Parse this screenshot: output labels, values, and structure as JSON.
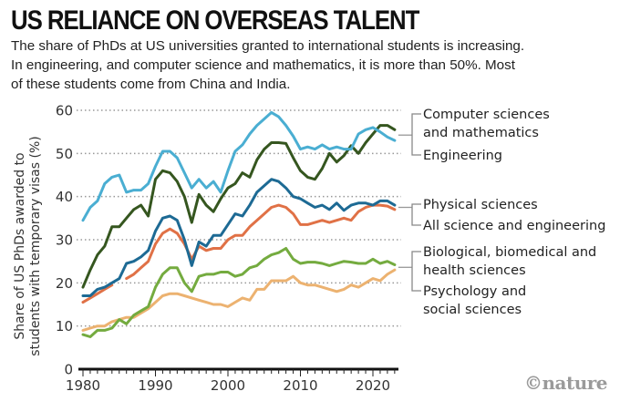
{
  "header": {
    "title": "US RELIANCE ON OVERSEAS TALENT",
    "subtitle_lines": [
      "The share of PhDs at US universities granted to international students is increasing.",
      "In engineering, and computer science and mathematics, it is more than 50%. Most",
      "of these students come from China and India."
    ]
  },
  "credit": "©nature",
  "chart_data": {
    "type": "line",
    "title": "US RELIANCE ON OVERSEAS TALENT",
    "xlabel": "",
    "ylabel_lines": [
      "Share of US PhDs awarded to",
      "students with temporary visas (%)"
    ],
    "xlim": [
      1980,
      2023
    ],
    "ylim": [
      0,
      60
    ],
    "x_ticks": [
      1980,
      1990,
      2000,
      2010,
      2020
    ],
    "y_ticks": [
      0,
      10,
      20,
      30,
      40,
      50,
      60
    ],
    "grid": "horizontal dotted",
    "legend_placement": "right, direct labels",
    "x": [
      1980,
      1981,
      1982,
      1983,
      1984,
      1985,
      1986,
      1987,
      1988,
      1989,
      1990,
      1991,
      1992,
      1993,
      1994,
      1995,
      1996,
      1997,
      1998,
      1999,
      2000,
      2001,
      2002,
      2003,
      2004,
      2005,
      2006,
      2007,
      2008,
      2009,
      2010,
      2011,
      2012,
      2013,
      2014,
      2015,
      2016,
      2017,
      2018,
      2019,
      2020,
      2021,
      2022,
      2023
    ],
    "series": [
      {
        "name": "Computer sciences and mathematics",
        "label_lines": [
          "Computer sciences",
          "and mathematics"
        ],
        "color": "#4aaed2",
        "values": [
          34.5,
          37.5,
          39,
          43,
          44.5,
          45,
          41,
          41.5,
          41.5,
          43,
          47,
          50.5,
          50.5,
          49,
          45.5,
          42,
          44,
          42,
          43.5,
          41,
          46,
          50.5,
          52,
          54.5,
          56.5,
          58,
          59.5,
          58.5,
          56.5,
          54,
          51,
          51.5,
          51,
          52,
          51,
          51.5,
          51,
          51,
          54.5,
          55.5,
          56,
          55,
          53.8,
          53
        ]
      },
      {
        "name": "Engineering",
        "label_lines": [
          "Engineering"
        ],
        "color": "#35561f",
        "values": [
          19,
          23,
          26.5,
          28.5,
          33,
          33,
          35,
          37,
          38,
          35.5,
          44,
          46,
          45.5,
          43.5,
          40,
          34,
          40.5,
          38,
          36.5,
          39.5,
          42,
          43,
          45.5,
          44.5,
          48.5,
          51,
          52.5,
          52.5,
          52.3,
          49,
          46,
          44.5,
          44,
          46.5,
          50,
          48,
          49.5,
          51.8,
          50,
          52.5,
          54.5,
          56.5,
          56.5,
          55.5
        ]
      },
      {
        "name": "Physical sciences",
        "label_lines": [
          "Physical sciences"
        ],
        "color": "#1d6a94",
        "values": [
          17,
          17,
          18.5,
          19,
          20,
          21,
          24.5,
          25,
          26,
          27.5,
          32,
          35,
          35.5,
          34.5,
          30,
          24,
          29.5,
          28.5,
          31,
          31,
          33.5,
          36,
          35.5,
          38,
          41,
          42.5,
          44,
          43.5,
          42,
          40,
          39.5,
          38.5,
          37.5,
          38,
          37,
          38.5,
          36.8,
          38,
          38.5,
          38.5,
          38,
          39,
          39,
          38
        ]
      },
      {
        "name": "All science and engineering",
        "label_lines": [
          "All science and engineering"
        ],
        "color": "#e07146",
        "values": [
          15.5,
          16.5,
          17.5,
          18.5,
          19.5,
          null,
          21,
          22,
          23.5,
          25,
          29,
          31.5,
          32.5,
          31.5,
          29,
          25.5,
          28.5,
          27.5,
          28,
          28,
          30,
          31,
          31,
          33,
          34.5,
          36,
          37.5,
          38,
          37.5,
          36,
          33.5,
          33.5,
          34,
          34.5,
          34,
          34.5,
          35,
          34.5,
          36.5,
          37.5,
          38,
          38,
          37.8,
          37
        ]
      },
      {
        "name": "Biological, biomedical and health sciences",
        "label_lines": [
          "Biological, biomedical and",
          "health sciences"
        ],
        "color": "#74ab3f",
        "values": [
          8,
          7.5,
          9,
          9,
          9.5,
          11.5,
          10.5,
          12.5,
          13.5,
          14.5,
          19,
          22,
          23.5,
          23.5,
          20,
          18,
          21.5,
          22,
          22,
          22.5,
          22.5,
          21.5,
          22,
          23.5,
          24,
          25.5,
          26.5,
          27,
          28,
          25.5,
          24.5,
          24.8,
          24.8,
          24.5,
          24,
          24.5,
          25,
          24.8,
          24.5,
          24.5,
          25.5,
          24.5,
          25,
          24.2
        ]
      },
      {
        "name": "Psychology and social sciences",
        "label_lines": [
          "Psychology and",
          "social sciences"
        ],
        "color": "#ecb270",
        "values": [
          9,
          9.5,
          10,
          10,
          11,
          11.5,
          12,
          12,
          13,
          14,
          15.5,
          17,
          17.5,
          17.5,
          17,
          16.5,
          16,
          15.5,
          15,
          15,
          14.5,
          15.5,
          16.5,
          16,
          18.5,
          18.5,
          20.5,
          20.5,
          20.5,
          21.5,
          20,
          19.5,
          19.5,
          19,
          18.5,
          18,
          18.5,
          19.5,
          19,
          20,
          21,
          20.5,
          22,
          23
        ]
      }
    ]
  }
}
